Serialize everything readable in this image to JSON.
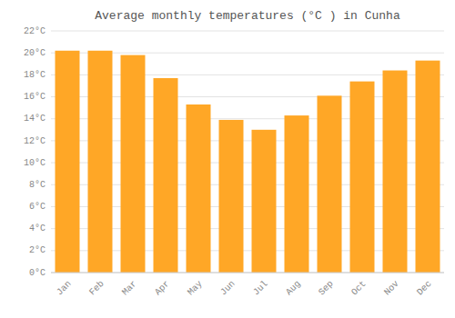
{
  "chart_data": {
    "type": "bar",
    "title": "Average monthly temperatures (°C ) in Cunha",
    "categories": [
      "Jan",
      "Feb",
      "Mar",
      "Apr",
      "May",
      "Jun",
      "Jul",
      "Aug",
      "Sep",
      "Oct",
      "Nov",
      "Dec"
    ],
    "values": [
      20.2,
      20.2,
      19.8,
      17.7,
      15.3,
      13.9,
      13.0,
      14.3,
      16.1,
      17.4,
      18.4,
      19.3
    ],
    "color": "#FFA726",
    "ylim": [
      0,
      22
    ],
    "yticks": [
      {
        "value": 0,
        "label": "0°C"
      },
      {
        "value": 2,
        "label": "2°C"
      },
      {
        "value": 4,
        "label": "4°C"
      },
      {
        "value": 6,
        "label": "6°C"
      },
      {
        "value": 8,
        "label": "8°C"
      },
      {
        "value": 10,
        "label": "10°C"
      },
      {
        "value": 12,
        "label": "12°C"
      },
      {
        "value": 14,
        "label": "14°C"
      },
      {
        "value": 16,
        "label": "16°C"
      },
      {
        "value": 18,
        "label": "18°C"
      },
      {
        "value": 20,
        "label": "20°C"
      },
      {
        "value": 22,
        "label": "22°C"
      }
    ],
    "grid": true
  }
}
